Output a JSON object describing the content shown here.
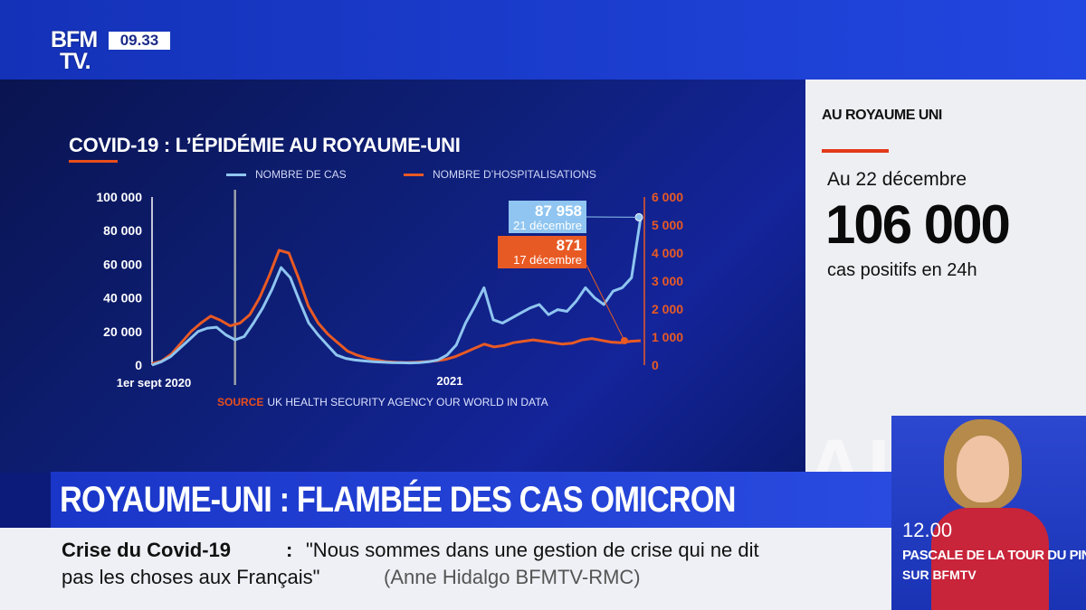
{
  "header": {
    "logo_line1": "BFM",
    "logo_line2": "TV.",
    "time": "09.33"
  },
  "chart_data": {
    "type": "line",
    "title": "COVID-19 : L’ÉPIDÉMIE AU ROYAUME-UNI",
    "colors": {
      "cases": "#8fc5f0",
      "hospitalisations": "#e85a24",
      "marker_line": "#9aa0a8"
    },
    "series": [
      {
        "name": "NOMBRE DE CAS",
        "axis": "left",
        "values": [
          0,
          2000,
          5000,
          10000,
          15000,
          20000,
          22000,
          22500,
          18000,
          15000,
          17000,
          25000,
          34000,
          45000,
          58000,
          52000,
          38000,
          25000,
          18000,
          12000,
          6000,
          4000,
          3000,
          2500,
          2000,
          1800,
          1500,
          1400,
          1300,
          1500,
          2000,
          3000,
          6000,
          12000,
          25000,
          35000,
          46000,
          27000,
          25000,
          28000,
          31000,
          34000,
          36000,
          30000,
          33000,
          32000,
          38000,
          46000,
          40000,
          36000,
          44000,
          46000,
          52000,
          87958
        ]
      },
      {
        "name": "NOMBRE D’HOSPITALISATIONS",
        "axis": "right",
        "values": [
          50,
          150,
          400,
          800,
          1200,
          1500,
          1750,
          1600,
          1400,
          1500,
          1800,
          2400,
          3200,
          4100,
          4000,
          3100,
          2100,
          1500,
          1100,
          800,
          500,
          350,
          250,
          180,
          120,
          100,
          90,
          100,
          120,
          150,
          200,
          300,
          450,
          600,
          750,
          650,
          700,
          800,
          850,
          900,
          850,
          800,
          750,
          780,
          900,
          950,
          880,
          820,
          800,
          850,
          871
        ]
      }
    ],
    "left_axis": {
      "ticks": [
        "100 000",
        "80 000",
        "60 000",
        "40 000",
        "20 000",
        "0"
      ],
      "ylim": [
        0,
        100000
      ]
    },
    "right_axis": {
      "ticks": [
        "6 000",
        "5 000",
        "4 000",
        "3 000",
        "2 000",
        "1 000",
        "0"
      ],
      "ylim": [
        0,
        6000
      ]
    },
    "x_labels": [
      "1er sept 2020",
      "2021"
    ],
    "vertical_marker_index": 9,
    "callouts": [
      {
        "value": "87 958",
        "date": "21 décembre",
        "color": "#8fc5f0"
      },
      {
        "value": "871",
        "date": "17 décembre",
        "color": "#e85a24"
      }
    ]
  },
  "source": {
    "key": "SOURCE",
    "text": "UK HEALTH SECURITY AGENCY OUR WORLD IN DATA"
  },
  "side_panel": {
    "heading": "AU ROYAUME UNI",
    "date": "Au 22 décembre",
    "number": "106 000",
    "caption": "cas positifs en 24h",
    "watermark": "AURO"
  },
  "headline": "ROYAUME-UNI : FLAMBÉE DES CAS OMICRON",
  "ticker": {
    "topic": "Crise du Covid-19",
    "colon": ":",
    "quote_line1": "\"Nous sommes dans une gestion de crise qui ne dit",
    "quote_line2": "pas les choses aux Français\"",
    "author": "(Anne Hidalgo BFMTV-RMC)"
  },
  "promo": {
    "time": "12.00",
    "name": "PASCALE DE LA TOUR DU PIN",
    "channel": "SUR BFMTV"
  }
}
